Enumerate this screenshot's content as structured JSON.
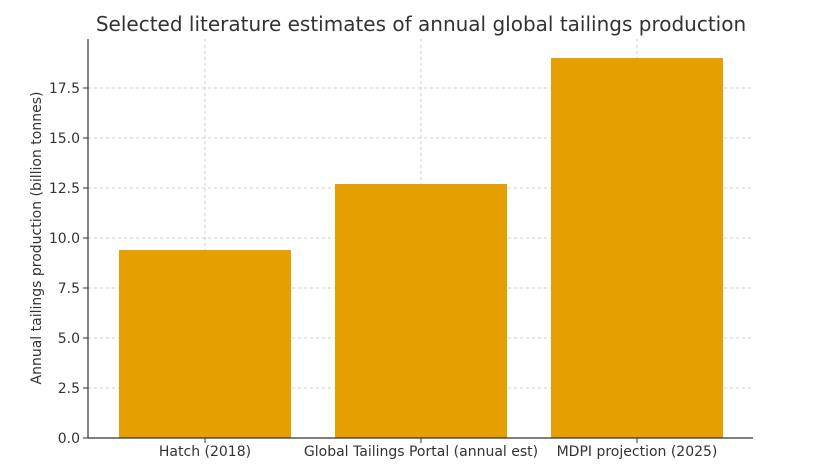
{
  "chart_data": {
    "type": "bar",
    "title": "Selected literature estimates of annual global tailings production",
    "xlabel": "",
    "ylabel": "Annual tailings production (billion tonnes)",
    "categories": [
      "Hatch (2018)",
      "Global Tailings Portal (annual est)",
      "MDPI projection (2025)"
    ],
    "values": [
      9.4,
      12.7,
      19.0
    ],
    "ylim": [
      0,
      19.95
    ],
    "yticks": [
      "0.0",
      "2.5",
      "5.0",
      "7.5",
      "10.0",
      "12.5",
      "15.0",
      "17.5"
    ],
    "grid": true,
    "colors": {
      "bar": "#E69F00"
    }
  }
}
